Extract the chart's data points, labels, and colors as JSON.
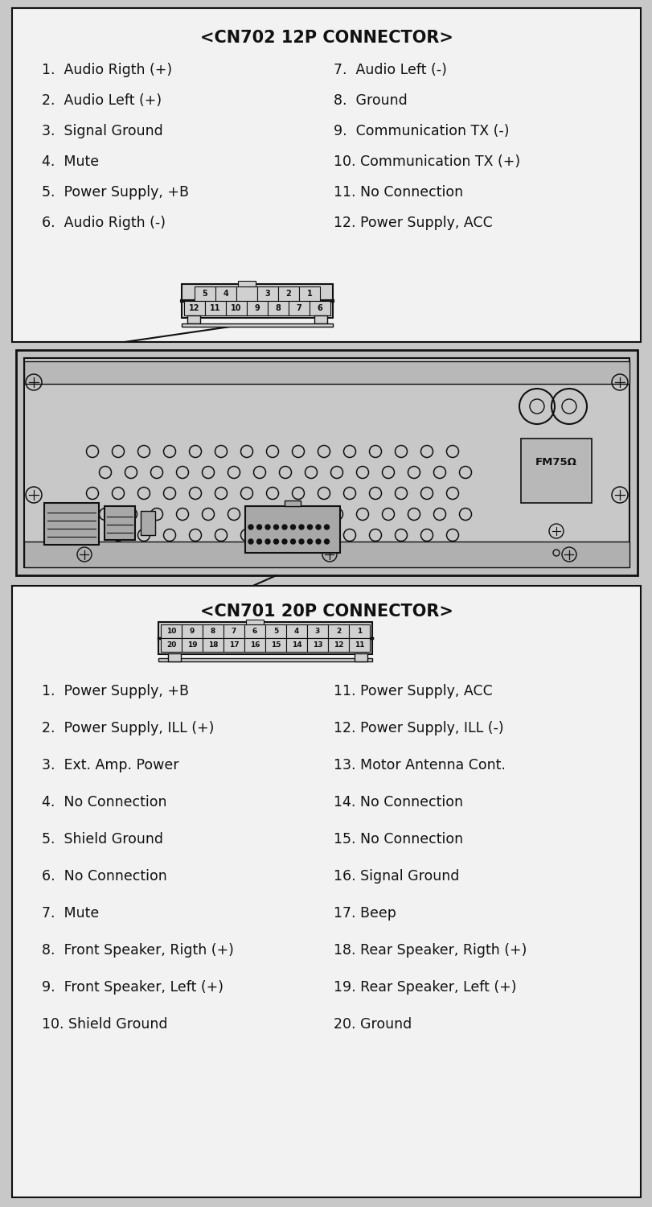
{
  "bg_color": "#c8c8c8",
  "box_bg": "#f2f2f2",
  "line_color": "#111111",
  "title_cn702": "<CN702 12P CONNECTOR>",
  "title_cn701": "<CN701 20P CONNECTOR>",
  "cn702_left": [
    "1.  Audio Rigth (+)",
    "2.  Audio Left (+)",
    "3.  Signal Ground",
    "4.  Mute",
    "5.  Power Supply, +B",
    "6.  Audio Rigth (-)"
  ],
  "cn702_right": [
    "7.  Audio Left (-)",
    "8.  Ground",
    "9.  Communication TX (-)",
    "10. Communication TX (+)",
    "11. No Connection",
    "12. Power Supply, ACC"
  ],
  "cn701_left": [
    "1.  Power Supply, +B",
    "2.  Power Supply, ILL (+)",
    "3.  Ext. Amp. Power",
    "4.  No Connection",
    "5.  Shield Ground",
    "6.  No Connection",
    "7.  Mute",
    "8.  Front Speaker, Rigth (+)",
    "9.  Front Speaker, Left (+)",
    "10. Shield Ground"
  ],
  "cn701_right": [
    "11. Power Supply, ACC",
    "12. Power Supply, ILL (-)",
    "13. Motor Antenna Cont.",
    "14. No Connection",
    "15. No Connection",
    "16. Signal Ground",
    "17. Beep",
    "18. Rear Speaker, Rigth (+)",
    "19. Rear Speaker, Left (+)",
    "20. Ground"
  ],
  "cn702_top_pins": [
    "5",
    "4",
    "",
    "3",
    "2",
    "1"
  ],
  "cn702_bot_pins": [
    "12",
    "11",
    "10",
    "9",
    "8",
    "7",
    "6"
  ],
  "cn701_top_pins": [
    "10",
    "9",
    "8",
    "7",
    "6",
    "5",
    "4",
    "3",
    "2",
    "1"
  ],
  "cn701_bot_pins": [
    "20",
    "19",
    "18",
    "17",
    "16",
    "15",
    "14",
    "13",
    "12",
    "11"
  ]
}
